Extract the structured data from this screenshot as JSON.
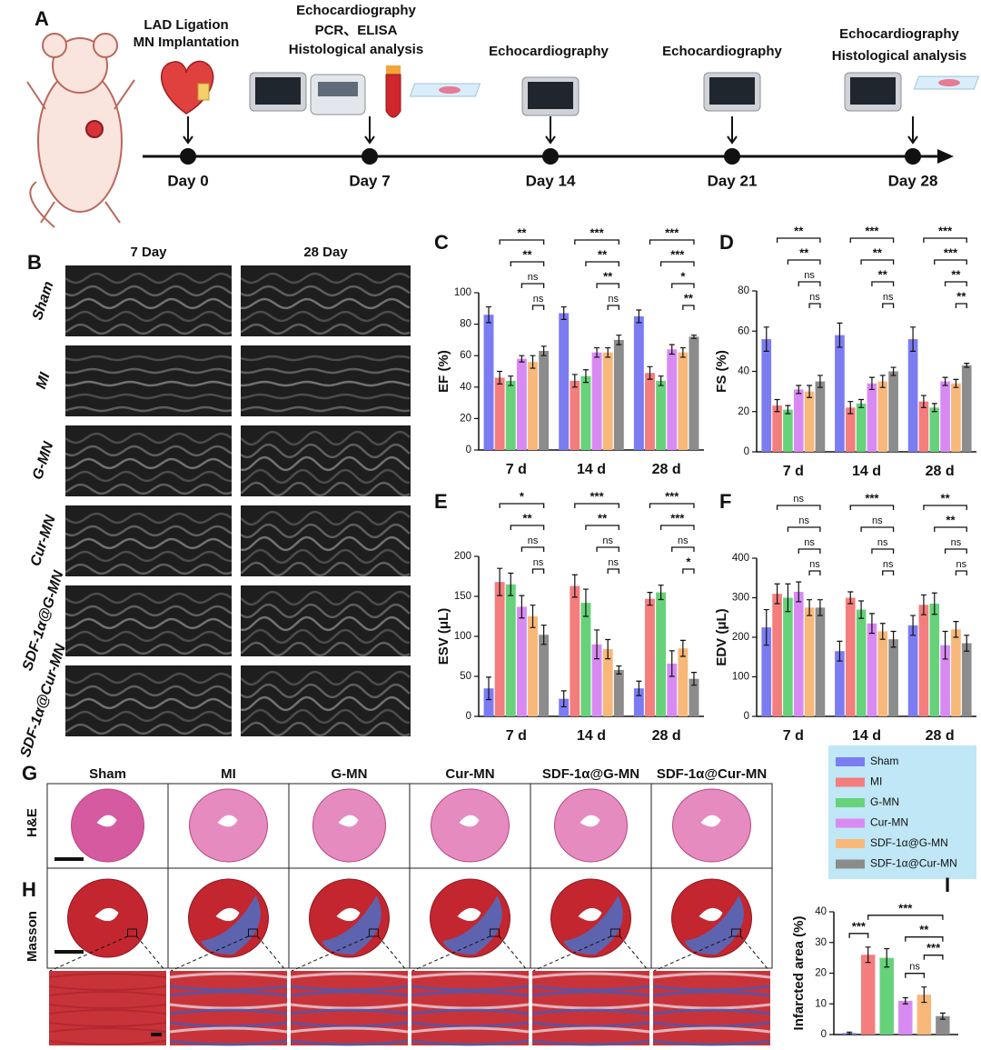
{
  "panel_a": {
    "label": "A",
    "events": [
      {
        "text": [
          "LAD Ligation",
          "MN Implantation"
        ],
        "day": "Day 0"
      },
      {
        "text": [
          "Echocardiography",
          "PCR、ELISA",
          "Histological analysis"
        ],
        "day": "Day 7"
      },
      {
        "text": [
          "Echocardiography"
        ],
        "day": "Day 14"
      },
      {
        "text": [
          "Echocardiography"
        ],
        "day": "Day 21"
      },
      {
        "text": [
          "Echocardiography",
          "Histological analysis"
        ],
        "day": "Day 28"
      }
    ]
  },
  "panel_b": {
    "label": "B",
    "columns": [
      "7 Day",
      "28 Day"
    ],
    "rows": [
      "Sham",
      "MI",
      "G-MN",
      "Cur-MN",
      "SDF-1α@G-MN",
      "SDF-1α@Cur-MN"
    ]
  },
  "panel_g": {
    "label": "G",
    "row_label": "H&E",
    "columns": [
      "Sham",
      "MI",
      "G-MN",
      "Cur-MN",
      "SDF-1α@G-MN",
      "SDF-1α@Cur-MN"
    ]
  },
  "panel_h": {
    "label": "H",
    "row_label": "Masson"
  },
  "legend": {
    "series": [
      {
        "name": "Sham",
        "color": "#7b7cf2"
      },
      {
        "name": "MI",
        "color": "#f47d7d"
      },
      {
        "name": "G-MN",
        "color": "#66d27a"
      },
      {
        "name": "Cur-MN",
        "color": "#d98af2"
      },
      {
        "name": "SDF-1α@G-MN",
        "color": "#f8b87a"
      },
      {
        "name": "SDF-1α@Cur-MN",
        "color": "#8c8c8c"
      }
    ]
  },
  "chart_data": [
    {
      "type": "bar",
      "panel": "C",
      "y_label": "EF (%)",
      "categories": [
        "7 d",
        "14 d",
        "28 d"
      ],
      "ylim": [
        0,
        100
      ],
      "yticks": [
        0,
        20,
        40,
        60,
        80,
        100
      ],
      "series": [
        {
          "values": [
            86,
            87,
            85
          ],
          "errors": [
            5,
            4,
            4
          ]
        },
        {
          "values": [
            46,
            44,
            49
          ],
          "errors": [
            4,
            4,
            4
          ]
        },
        {
          "values": [
            44,
            47,
            44
          ],
          "errors": [
            3,
            4,
            3
          ]
        },
        {
          "values": [
            58,
            62,
            64
          ],
          "errors": [
            2,
            3,
            3
          ]
        },
        {
          "values": [
            56,
            62,
            62
          ],
          "errors": [
            4,
            3,
            3
          ]
        },
        {
          "values": [
            63,
            70,
            72
          ],
          "errors": [
            3,
            3,
            1
          ]
        }
      ],
      "significance": [
        [
          "**",
          "**",
          "ns",
          "ns"
        ],
        [
          "***",
          "**",
          "**",
          "ns"
        ],
        [
          "***",
          "***",
          "*",
          "**"
        ]
      ]
    },
    {
      "type": "bar",
      "panel": "D",
      "y_label": "FS (%)",
      "categories": [
        "7 d",
        "14 d",
        "28 d"
      ],
      "ylim": [
        0,
        80
      ],
      "yticks": [
        0,
        20,
        40,
        60,
        80
      ],
      "series": [
        {
          "values": [
            56,
            58,
            56
          ],
          "errors": [
            6,
            6,
            6
          ]
        },
        {
          "values": [
            23,
            22,
            25
          ],
          "errors": [
            3,
            3,
            3
          ]
        },
        {
          "values": [
            21,
            24,
            22
          ],
          "errors": [
            2,
            2,
            2
          ]
        },
        {
          "values": [
            31,
            34,
            35
          ],
          "errors": [
            2,
            3,
            2
          ]
        },
        {
          "values": [
            30,
            35,
            34
          ],
          "errors": [
            3,
            3,
            2
          ]
        },
        {
          "values": [
            35,
            40,
            43
          ],
          "errors": [
            3,
            2,
            1
          ]
        }
      ],
      "significance": [
        [
          "**",
          "**",
          "ns",
          "ns"
        ],
        [
          "***",
          "**",
          "**",
          "ns"
        ],
        [
          "***",
          "***",
          "**",
          "**"
        ]
      ]
    },
    {
      "type": "bar",
      "panel": "E",
      "y_label": "ESV (μL)",
      "categories": [
        "7 d",
        "14 d",
        "28 d"
      ],
      "ylim": [
        0,
        200
      ],
      "yticks": [
        0,
        50,
        100,
        150,
        200
      ],
      "series": [
        {
          "values": [
            35,
            22,
            35
          ],
          "errors": [
            14,
            10,
            9
          ]
        },
        {
          "values": [
            168,
            163,
            147
          ],
          "errors": [
            17,
            14,
            8
          ]
        },
        {
          "values": [
            165,
            142,
            155
          ],
          "errors": [
            14,
            17,
            9
          ]
        },
        {
          "values": [
            137,
            90,
            66
          ],
          "errors": [
            14,
            18,
            16
          ]
        },
        {
          "values": [
            125,
            84,
            85
          ],
          "errors": [
            14,
            12,
            10
          ]
        },
        {
          "values": [
            102,
            58,
            47
          ],
          "errors": [
            12,
            5,
            8
          ]
        }
      ],
      "significance": [
        [
          "*",
          "**",
          "ns",
          "ns"
        ],
        [
          "***",
          "**",
          "ns",
          "ns"
        ],
        [
          "***",
          "***",
          "ns",
          "*"
        ]
      ]
    },
    {
      "type": "bar",
      "panel": "F",
      "y_label": "EDV (μL)",
      "categories": [
        "7 d",
        "14 d",
        "28 d"
      ],
      "ylim": [
        0,
        400
      ],
      "yticks": [
        0,
        100,
        200,
        300,
        400
      ],
      "series": [
        {
          "values": [
            225,
            165,
            230
          ],
          "errors": [
            45,
            25,
            25
          ]
        },
        {
          "values": [
            310,
            300,
            282
          ],
          "errors": [
            25,
            15,
            25
          ]
        },
        {
          "values": [
            300,
            270,
            285
          ],
          "errors": [
            35,
            22,
            27
          ]
        },
        {
          "values": [
            315,
            235,
            180
          ],
          "errors": [
            25,
            25,
            35
          ]
        },
        {
          "values": [
            275,
            215,
            220
          ],
          "errors": [
            20,
            20,
            20
          ]
        },
        {
          "values": [
            275,
            195,
            185
          ],
          "errors": [
            20,
            20,
            20
          ]
        }
      ],
      "significance": [
        [
          "ns",
          "ns",
          "ns",
          "ns"
        ],
        [
          "***",
          "ns",
          "ns",
          "ns"
        ],
        [
          "**",
          "**",
          "ns",
          "ns"
        ]
      ]
    },
    {
      "type": "bar",
      "panel": "I",
      "y_label": "Infarcted area (%)",
      "ylim": [
        0,
        40
      ],
      "yticks": [
        0,
        10,
        20,
        30,
        40
      ],
      "values": [
        0.5,
        26,
        25,
        11,
        13,
        6
      ],
      "errors": [
        0.3,
        2.5,
        3,
        1,
        2.5,
        1
      ],
      "brackets": [
        {
          "from": 0,
          "to": 1,
          "label": "***"
        },
        {
          "from": 3,
          "to": 4,
          "label": "ns"
        },
        {
          "from": 4,
          "to": 5,
          "label": "***"
        },
        {
          "from": 3,
          "to": 5,
          "label": "**"
        },
        {
          "from": 1,
          "to": 5,
          "label": "***"
        }
      ]
    }
  ]
}
